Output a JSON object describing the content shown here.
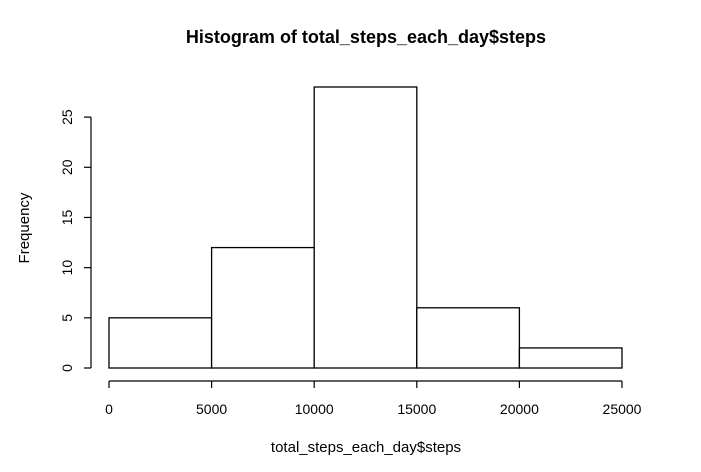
{
  "chart_data": {
    "type": "bar",
    "title": "Histogram of total_steps_each_day$steps",
    "xlabel": "total_steps_each_day$steps",
    "ylabel": "Frequency",
    "bins": [
      {
        "start": 0,
        "end": 5000,
        "count": 5
      },
      {
        "start": 5000,
        "end": 10000,
        "count": 12
      },
      {
        "start": 10000,
        "end": 15000,
        "count": 28
      },
      {
        "start": 15000,
        "end": 20000,
        "count": 6
      },
      {
        "start": 20000,
        "end": 25000,
        "count": 2
      }
    ],
    "xticks": [
      0,
      5000,
      10000,
      15000,
      20000,
      25000
    ],
    "yticks": [
      0,
      5,
      10,
      15,
      20,
      25
    ],
    "xlim": [
      0,
      25000
    ],
    "ylim": [
      0,
      28
    ],
    "grid": false,
    "legend": "none",
    "colors": {
      "bar_fill": "#ffffff",
      "bar_stroke": "#000000"
    }
  }
}
